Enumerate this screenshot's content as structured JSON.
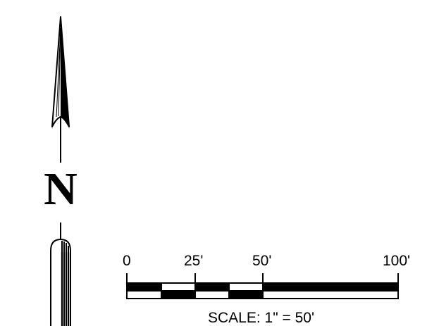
{
  "north_arrow": {
    "letter": "N"
  },
  "scale_bar": {
    "tick_labels": [
      "0",
      "25'",
      "50'",
      "100'"
    ],
    "caption": "SCALE: 1\" = 50'"
  },
  "colors": {
    "ink": "#000000",
    "paper": "#ffffff"
  }
}
